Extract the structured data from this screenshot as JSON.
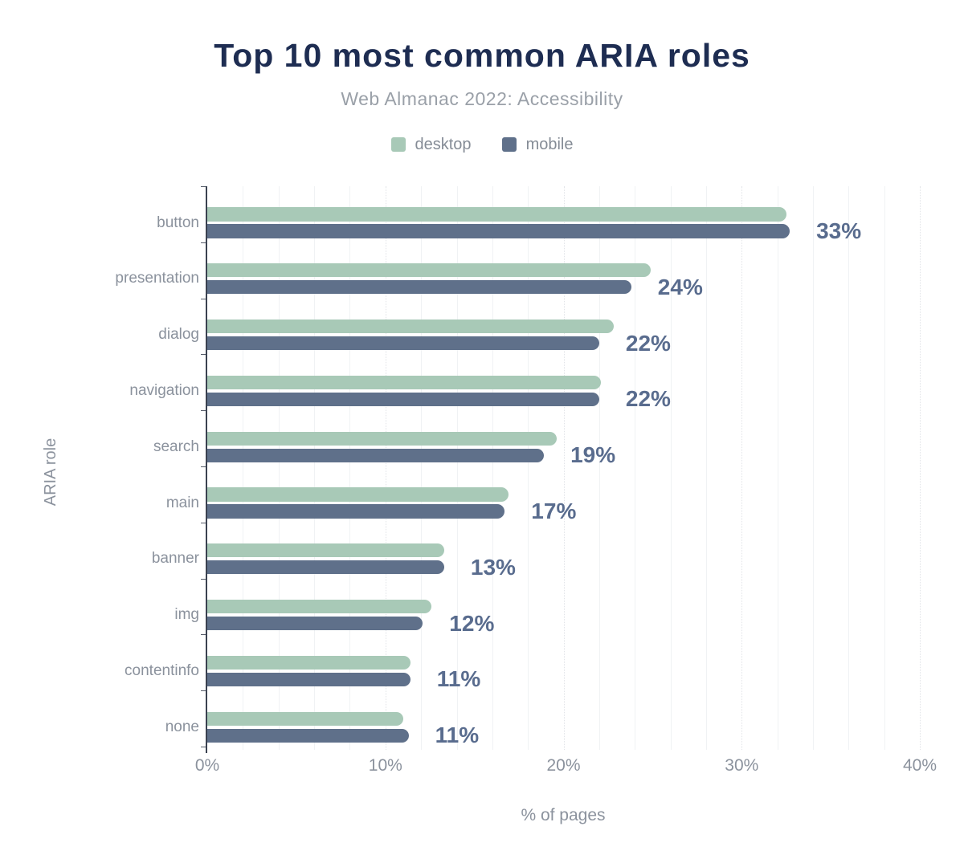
{
  "chart_data": {
    "type": "bar",
    "orientation": "horizontal",
    "title": "Top 10 most common ARIA roles",
    "subtitle": "Web Almanac 2022: Accessibility",
    "xlabel": "% of pages",
    "ylabel": "ARIA role",
    "xlim": [
      0,
      40
    ],
    "x_ticks": [
      {
        "value": 0,
        "label": "0%"
      },
      {
        "value": 10,
        "label": "10%"
      },
      {
        "value": 20,
        "label": "20%"
      },
      {
        "value": 30,
        "label": "30%"
      },
      {
        "value": 40,
        "label": "40%"
      }
    ],
    "grid": {
      "minor_step": 2,
      "major_step": 10
    },
    "legend_position": "top",
    "categories": [
      "button",
      "presentation",
      "dialog",
      "navigation",
      "search",
      "main",
      "banner",
      "img",
      "contentinfo",
      "none"
    ],
    "series": [
      {
        "name": "desktop",
        "color": "#a8c9b7",
        "values": [
          32.5,
          24.9,
          22.8,
          22.1,
          19.6,
          16.9,
          13.3,
          12.6,
          11.4,
          11.0
        ]
      },
      {
        "name": "mobile",
        "color": "#5f708a",
        "values": [
          32.7,
          23.8,
          22.0,
          22.0,
          18.9,
          16.7,
          13.3,
          12.1,
          11.4,
          11.3
        ]
      }
    ],
    "value_labels": [
      "33%",
      "24%",
      "22%",
      "22%",
      "19%",
      "17%",
      "13%",
      "12%",
      "11%",
      "11%"
    ]
  },
  "colors": {
    "title": "#1e2d52",
    "subtitle": "#9aa0a8",
    "legend_text": "#858c96",
    "axis_text": "#8b929d",
    "value_label": "#596c8e",
    "axis_line": "#3a4150",
    "grid_minor": "#f0f2f4",
    "grid_major": "#e2e4e8"
  }
}
